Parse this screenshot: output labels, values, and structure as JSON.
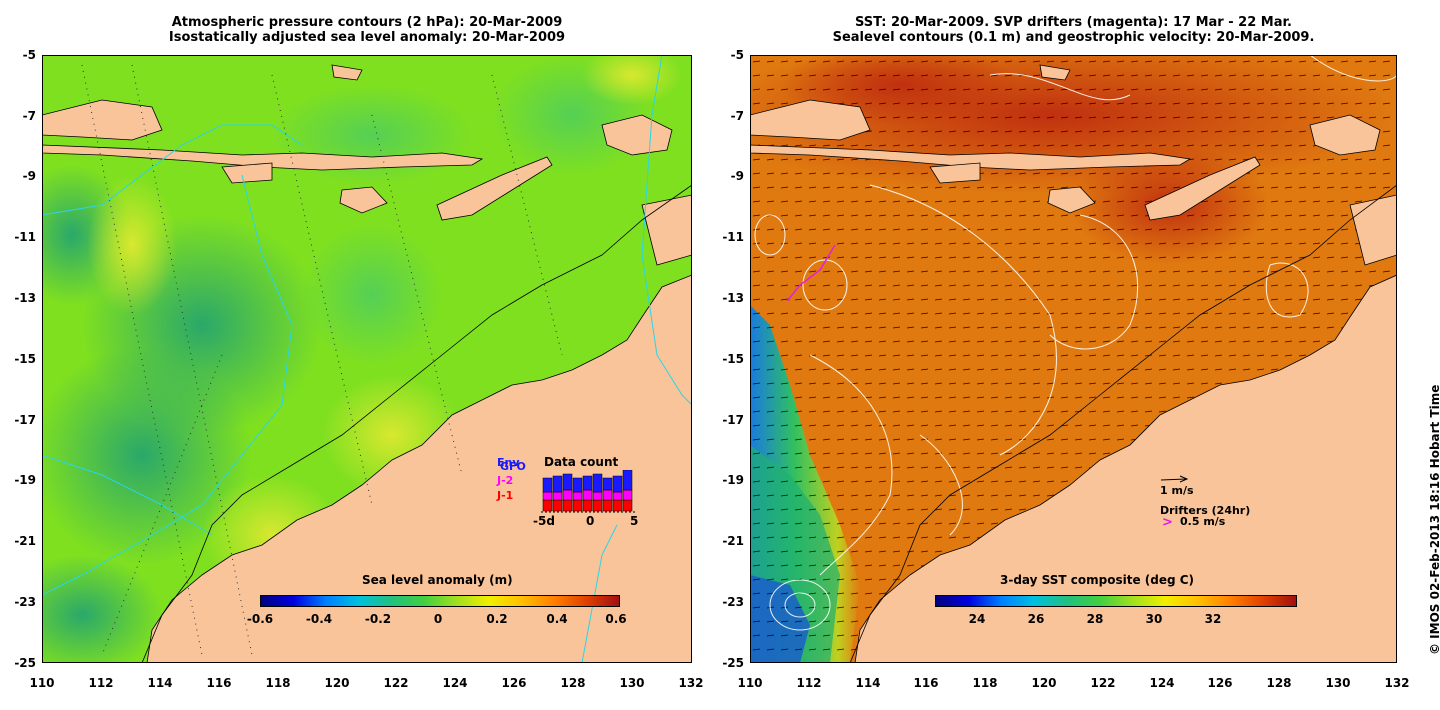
{
  "left_panel": {
    "title_line1": "Atmospheric pressure contours (2 hPa): 20-Mar-2009",
    "title_line2": "Isostatically adjusted sea level anomaly: 20-Mar-2009",
    "y_ticks": [
      "-5",
      "-7",
      "-9",
      "-11",
      "-13",
      "-15",
      "-17",
      "-19",
      "-21",
      "-23",
      "-25"
    ],
    "x_ticks": [
      "110",
      "112",
      "114",
      "116",
      "118",
      "120",
      "122",
      "124",
      "126",
      "128",
      "130",
      "132"
    ],
    "colorbar": {
      "title": "Sea level anomaly (m)",
      "ticks": [
        "-0.6",
        "-0.4",
        "-0.2",
        "0",
        "0.2",
        "0.4",
        "0.6"
      ]
    },
    "data_count": {
      "title": "Data count",
      "series": [
        "Env",
        "GFO",
        "J-2",
        "J-1"
      ],
      "series_colors": [
        "#1a1aff",
        "#1a1aff",
        "#ff00ff",
        "#ff0000"
      ],
      "axis_ticks": [
        "-5d",
        "0",
        "5"
      ]
    }
  },
  "right_panel": {
    "title_line1": "SST: 20-Mar-2009. SVP drifters (magenta): 17 Mar - 22 Mar.",
    "title_line2": "Sealevel contours (0.1 m) and geostrophic velocity: 20-Mar-2009.",
    "y_ticks": [
      "-5",
      "-7",
      "-9",
      "-11",
      "-13",
      "-15",
      "-17",
      "-19",
      "-21",
      "-23",
      "-25"
    ],
    "x_ticks": [
      "110",
      "112",
      "114",
      "116",
      "118",
      "120",
      "122",
      "124",
      "126",
      "128",
      "130",
      "132"
    ],
    "colorbar": {
      "title": "3-day SST composite (deg C)",
      "ticks": [
        "24",
        "26",
        "28",
        "30",
        "32"
      ]
    },
    "velocity_legend": "1 m/s",
    "drifter_legend_title": "Drifters (24hr)",
    "drifter_legend_value": "0.5 m/s",
    "drifter_symbol": ">"
  },
  "credit": "© IMOS 02-Feb-2013 18:16 Hobart Time",
  "colors": {
    "land": "#f9c49a",
    "sst_warm": "#e07a10",
    "sla_green": "#3dcc3d"
  }
}
